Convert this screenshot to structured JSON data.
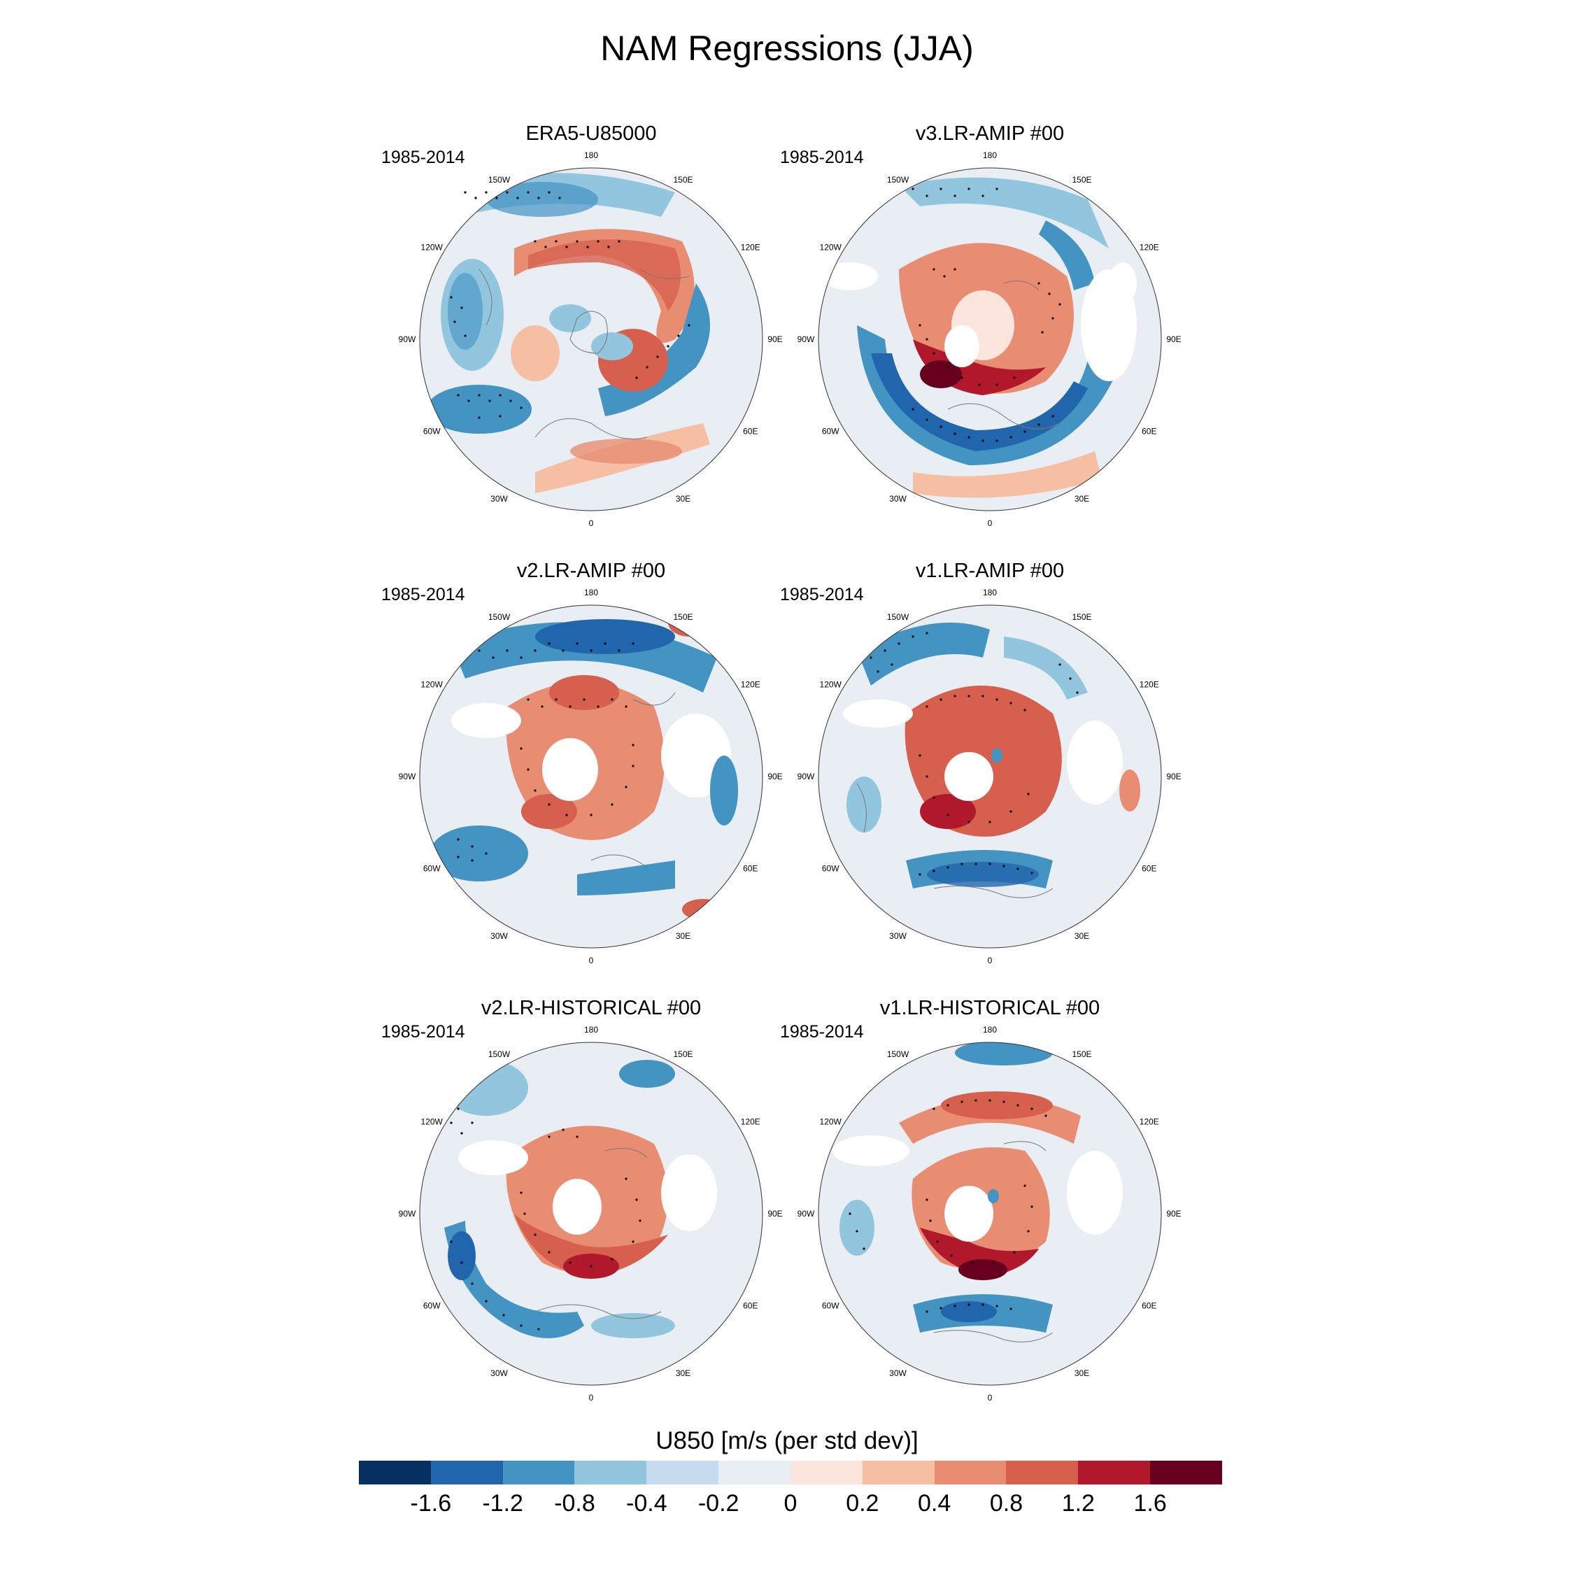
{
  "title": "NAM Regressions (JJA)",
  "lon_labels": [
    "180",
    "150E",
    "120E",
    "90E",
    "60E",
    "30E",
    "0",
    "30W",
    "60W",
    "90W",
    "120W",
    "150W"
  ],
  "panels": [
    {
      "title": "ERA5-U85000",
      "period": "1985-2014"
    },
    {
      "title": "v3.LR-AMIP  #00",
      "period": "1985-2014"
    },
    {
      "title": "v2.LR-AMIP  #00",
      "period": "1985-2014"
    },
    {
      "title": "v1.LR-AMIP  #00",
      "period": "1985-2014"
    },
    {
      "title": "v2.LR-HISTORICAL  #00",
      "period": "1985-2014"
    },
    {
      "title": "v1.LR-HISTORICAL  #00",
      "period": "1985-2014"
    }
  ],
  "colorbar": {
    "title": "U850 [m/s (per std dev)]",
    "tick_labels": [
      "-1.6",
      "-1.2",
      "-0.8",
      "-0.4",
      "-0.2",
      "0",
      "0.2",
      "0.4",
      "0.8",
      "1.2",
      "1.6"
    ],
    "colors": [
      "#053061",
      "#2166ac",
      "#4393c3",
      "#92c5de",
      "#c6dbef",
      "#e8eef3",
      "#fbe5dc",
      "#f6bea3",
      "#e98d72",
      "#d6604d",
      "#b2182b",
      "#67001f"
    ]
  }
}
